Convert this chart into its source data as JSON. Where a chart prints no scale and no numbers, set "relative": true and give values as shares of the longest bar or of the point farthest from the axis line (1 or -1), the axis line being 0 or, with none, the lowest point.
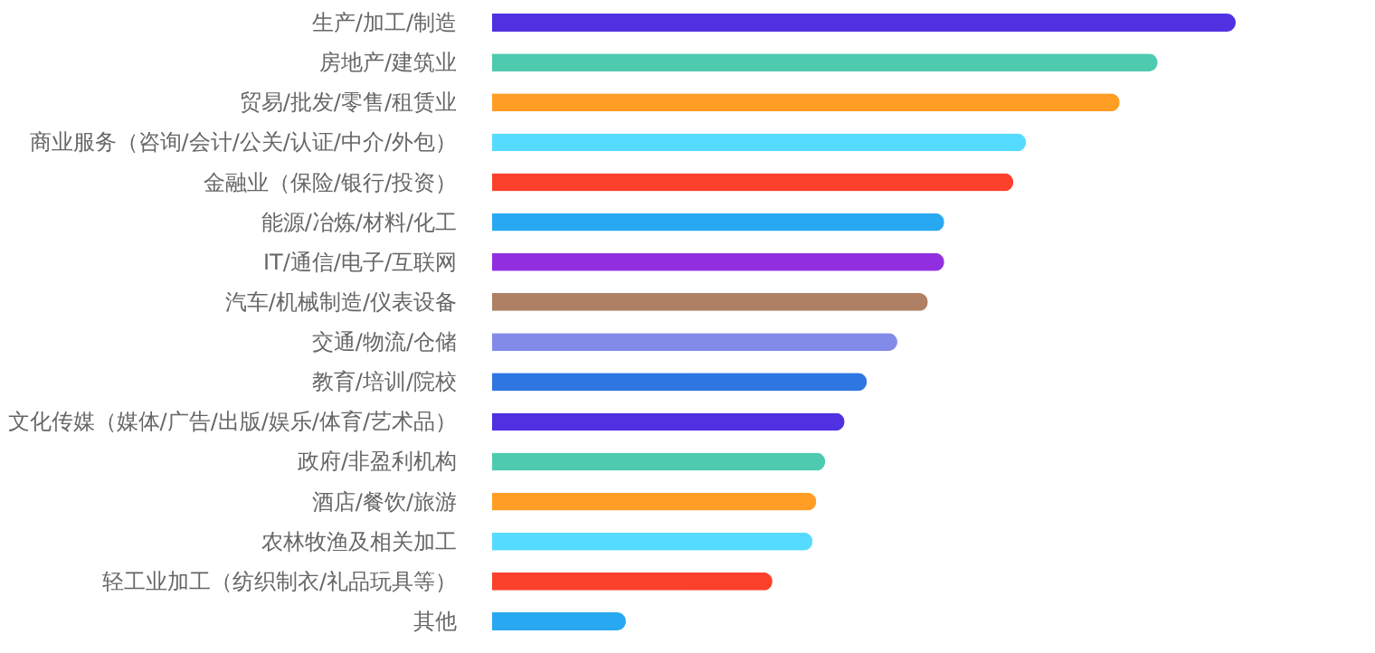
{
  "chart_data": {
    "type": "bar",
    "orientation": "horizontal",
    "relative": true,
    "categories": [
      "生产/加工/制造",
      "房地产/建筑业",
      "贸易/批发/零售/租赁业",
      "商业服务（咨询/会计/公关/认证/中介/外包）",
      "金融业（保险/银行/投资）",
      "能源/冶炼/材料/化工",
      "IT/通信/电子/互联网",
      "汽车/机械制造/仪表设备",
      "交通/物流/仓储",
      "教育/培训/院校",
      "文化传媒（媒体/广告/出版/娱乐/体育/艺术品）",
      "政府/非盈利机构",
      "酒店/餐饮/旅游",
      "农林牧渔及相关加工",
      "轻工业加工（纺织制衣/礼品玩具等）",
      "其他"
    ],
    "values": [
      1,
      0.895,
      0.844,
      0.718,
      0.701,
      0.608,
      0.608,
      0.586,
      0.545,
      0.504,
      0.474,
      0.448,
      0.436,
      0.431,
      0.377,
      0.18
    ],
    "colors": [
      "#4f31e2",
      "#4ecbae",
      "#ff9d25",
      "#55dbff",
      "#fb402b",
      "#29a8f2",
      "#912fe0",
      "#af8064",
      "#838be9",
      "#2e77e3",
      "#4f31e2",
      "#4ecbae",
      "#ff9d25",
      "#55dbff",
      "#fb402b",
      "#29a8f2"
    ]
  }
}
